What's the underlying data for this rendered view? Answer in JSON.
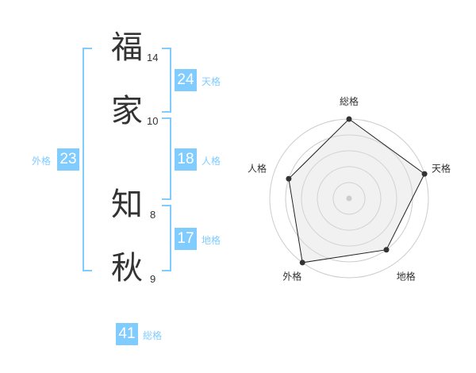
{
  "name": {
    "chars": [
      {
        "char": "福",
        "strokes": "14"
      },
      {
        "char": "家",
        "strokes": "10"
      },
      {
        "char": "知",
        "strokes": "8"
      },
      {
        "char": "秋",
        "strokes": "9"
      }
    ]
  },
  "scores": {
    "tenkaku": {
      "label": "天格",
      "value": "24"
    },
    "jinkaku": {
      "label": "人格",
      "value": "18"
    },
    "chikaku": {
      "label": "地格",
      "value": "17"
    },
    "gaikaku": {
      "label": "外格",
      "value": "23"
    },
    "soukaku": {
      "label": "総格",
      "value": "41"
    }
  },
  "colors": {
    "accent": "#80ccff",
    "text": "#333333"
  },
  "chart_data": {
    "type": "radar",
    "axes": [
      "総格",
      "天格",
      "地格",
      "外格",
      "人格"
    ],
    "values": [
      5,
      5,
      4,
      5,
      4
    ],
    "range": [
      0,
      5
    ],
    "grid": true
  }
}
